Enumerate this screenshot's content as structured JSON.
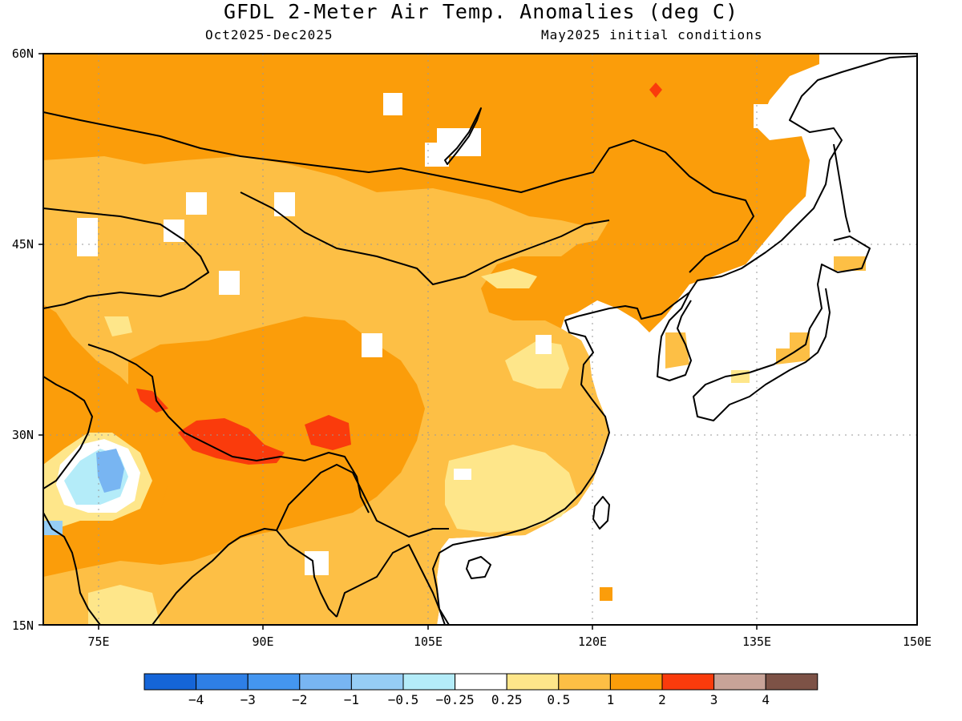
{
  "header": {
    "title": "GFDL 2-Meter Air Temp. Anomalies (deg C)",
    "period": "Oct2025-Dec2025",
    "init": "May2025 initial conditions"
  },
  "map": {
    "lon_labels": [
      "75E",
      "90E",
      "105E",
      "120E",
      "135E",
      "150E"
    ],
    "lat_labels": [
      "60N",
      "45N",
      "30N",
      "15N"
    ]
  },
  "legend": {
    "colors": [
      "#1565d8",
      "#2e7fe6",
      "#4496f0",
      "#78b5f2",
      "#96cdf5",
      "#b4ecf9",
      "#ffffff",
      "#fee68a",
      "#fdbf45",
      "#fb9d0a",
      "#fa3b0c",
      "#c8a398",
      "#7d5246"
    ],
    "labels": [
      "−4",
      "−3",
      "−2",
      "−1",
      "−0.5",
      "−0.25",
      "0.25",
      "0.5",
      "1",
      "2",
      "3",
      "4"
    ]
  }
}
